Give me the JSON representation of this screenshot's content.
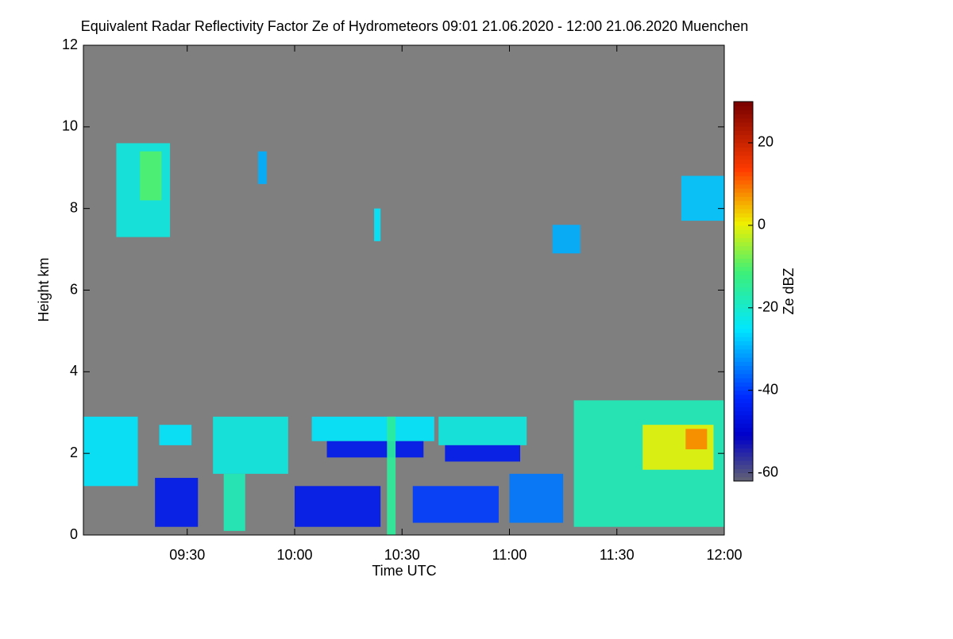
{
  "chart_data": {
    "type": "heatmap",
    "title": "Equivalent Radar Reflectivity Factor Ze of Hydrometeors   09:01 21.06.2020 - 12:00 21.06.2020 Muenchen",
    "x_label": "Time UTC",
    "y_label": "Height km",
    "colorbar_label": "Ze dBZ",
    "background_color": "#7f7f7f",
    "xlim": [
      9.0167,
      12.0
    ],
    "xticks": [
      {
        "value": 9.5,
        "label": "09:30"
      },
      {
        "value": 10.0,
        "label": "10:00"
      },
      {
        "value": 10.5,
        "label": "10:30"
      },
      {
        "value": 11.0,
        "label": "11:00"
      },
      {
        "value": 11.5,
        "label": "11:30"
      },
      {
        "value": 12.0,
        "label": "12:00"
      }
    ],
    "ylim": [
      0,
      12
    ],
    "yticks": [
      0,
      2,
      4,
      6,
      8,
      10,
      12
    ],
    "zlim": [
      -62,
      30
    ],
    "zticks": [
      -60,
      -40,
      -20,
      0,
      20
    ],
    "cells": [
      {
        "x": [
          9.17,
          9.42
        ],
        "y": [
          7.3,
          9.6
        ],
        "value": -22
      },
      {
        "x": [
          9.28,
          9.38
        ],
        "y": [
          8.2,
          9.4
        ],
        "value": -10
      },
      {
        "x": [
          9.83,
          9.87
        ],
        "y": [
          8.6,
          9.4
        ],
        "value": -30
      },
      {
        "x": [
          10.37,
          10.4
        ],
        "y": [
          7.2,
          8.0
        ],
        "value": -25
      },
      {
        "x": [
          11.2,
          11.33
        ],
        "y": [
          6.9,
          7.6
        ],
        "value": -30
      },
      {
        "x": [
          11.8,
          12.0
        ],
        "y": [
          7.7,
          8.8
        ],
        "value": -28
      },
      {
        "x": [
          9.0167,
          9.27
        ],
        "y": [
          1.2,
          2.9
        ],
        "value": -25
      },
      {
        "x": [
          9.37,
          9.52
        ],
        "y": [
          2.2,
          2.7
        ],
        "value": -25
      },
      {
        "x": [
          9.62,
          9.97
        ],
        "y": [
          1.5,
          2.9
        ],
        "value": -22
      },
      {
        "x": [
          9.67,
          9.77
        ],
        "y": [
          0.1,
          1.5
        ],
        "value": -18
      },
      {
        "x": [
          10.08,
          10.65
        ],
        "y": [
          2.3,
          2.9
        ],
        "value": -25
      },
      {
        "x": [
          10.15,
          10.6
        ],
        "y": [
          1.9,
          2.3
        ],
        "value": -45
      },
      {
        "x": [
          10.43,
          10.47
        ],
        "y": [
          0.0,
          2.9
        ],
        "value": -15
      },
      {
        "x": [
          10.67,
          11.08
        ],
        "y": [
          2.2,
          2.9
        ],
        "value": -22
      },
      {
        "x": [
          10.7,
          11.05
        ],
        "y": [
          1.8,
          2.2
        ],
        "value": -45
      },
      {
        "x": [
          11.3,
          12.0
        ],
        "y": [
          0.2,
          3.3
        ],
        "value": -18
      },
      {
        "x": [
          11.62,
          11.95
        ],
        "y": [
          1.6,
          2.7
        ],
        "value": 0
      },
      {
        "x": [
          11.82,
          11.92
        ],
        "y": [
          2.1,
          2.6
        ],
        "value": 8
      },
      {
        "x": [
          9.35,
          9.55
        ],
        "y": [
          0.2,
          1.4
        ],
        "value": -45
      },
      {
        "x": [
          10.0,
          10.4
        ],
        "y": [
          0.2,
          1.2
        ],
        "value": -45
      },
      {
        "x": [
          10.55,
          10.95
        ],
        "y": [
          0.3,
          1.2
        ],
        "value": -40
      },
      {
        "x": [
          11.0,
          11.25
        ],
        "y": [
          0.3,
          1.5
        ],
        "value": -35
      }
    ]
  }
}
